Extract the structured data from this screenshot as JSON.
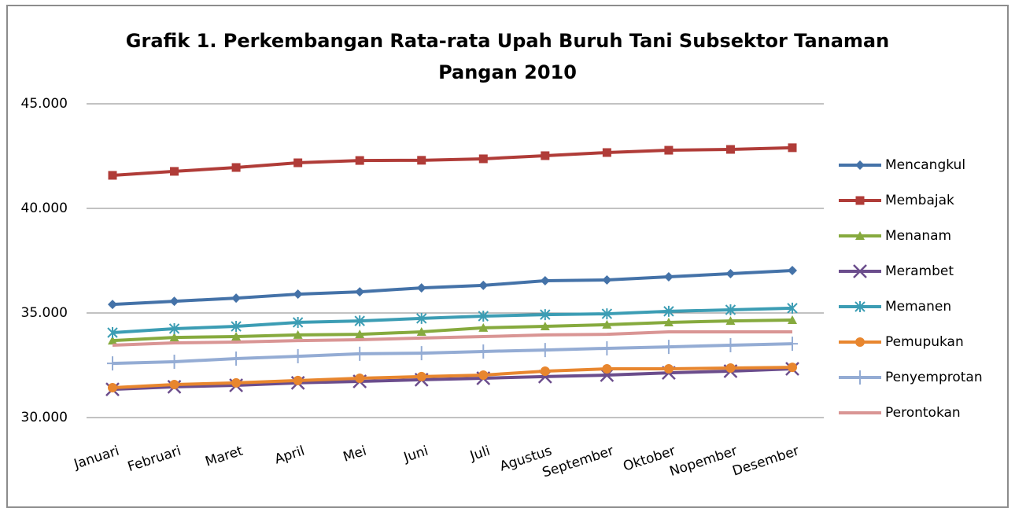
{
  "chart_data": {
    "type": "line",
    "title": "Grafik 1. Perkembangan Rata-rata Upah Buruh Tani Subsektor Tanaman Pangan 2010",
    "categories": [
      "Januari",
      "Februari",
      "Maret",
      "April",
      "Mei",
      "Juni",
      "Juli",
      "Agustus",
      "September",
      "Oktober",
      "Nopember",
      "Desember"
    ],
    "ylim": [
      30000,
      45000
    ],
    "yticks": [
      {
        "value": 30000,
        "label": "30.000"
      },
      {
        "value": 35000,
        "label": "35.000"
      },
      {
        "value": 40000,
        "label": "40.000"
      },
      {
        "value": 45000,
        "label": "45.000"
      }
    ],
    "grid": true,
    "legend": "right",
    "series": [
      {
        "name": "Mencangkul",
        "color": "#4472a8",
        "marker": "diamond",
        "values": [
          35410,
          35560,
          35710,
          35900,
          36010,
          36200,
          36320,
          36540,
          36580,
          36730,
          36880,
          37030
        ]
      },
      {
        "name": "Membajak",
        "color": "#b03c38",
        "marker": "square",
        "values": [
          41580,
          41770,
          41955,
          42180,
          42290,
          42300,
          42370,
          42520,
          42670,
          42780,
          42820,
          42900
        ]
      },
      {
        "name": "Menanam",
        "color": "#86aa3e",
        "marker": "triangle",
        "values": [
          33680,
          33830,
          33870,
          33950,
          33980,
          34100,
          34290,
          34360,
          34440,
          34550,
          34620,
          34660
        ]
      },
      {
        "name": "Merambet",
        "color": "#6b4d8c",
        "marker": "x",
        "values": [
          31350,
          31470,
          31540,
          31660,
          31730,
          31810,
          31880,
          31960,
          32030,
          32140,
          32220,
          32330
        ]
      },
      {
        "name": "Memanen",
        "color": "#3c9db4",
        "marker": "asterisk",
        "values": [
          34060,
          34250,
          34360,
          34550,
          34620,
          34740,
          34850,
          34920,
          34960,
          35080,
          35150,
          35230
        ]
      },
      {
        "name": "Pemupukan",
        "color": "#e8862e",
        "marker": "circle",
        "values": [
          31430,
          31580,
          31660,
          31770,
          31880,
          31960,
          32030,
          32220,
          32330,
          32330,
          32370,
          32400
        ]
      },
      {
        "name": "Penyemprotan",
        "color": "#94acd4",
        "marker": "plus",
        "values": [
          32590,
          32670,
          32820,
          32930,
          33050,
          33080,
          33160,
          33230,
          33310,
          33380,
          33460,
          33530
        ]
      },
      {
        "name": "Perontokan",
        "color": "#d99594",
        "marker": "none",
        "values": [
          33460,
          33570,
          33610,
          33680,
          33720,
          33800,
          33870,
          33950,
          33980,
          34100,
          34100,
          34100
        ]
      }
    ]
  }
}
